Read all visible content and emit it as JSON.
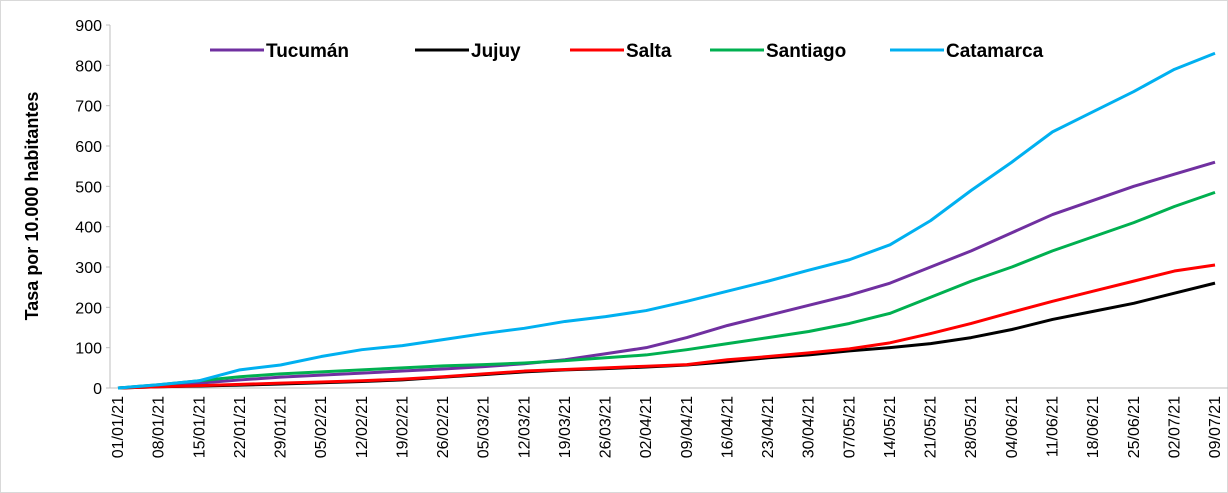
{
  "chart_data": {
    "type": "line",
    "y_label": "Tasa por 10.000 habitantes",
    "categories": [
      "01/01/21",
      "08/01/21",
      "15/01/21",
      "22/01/21",
      "29/01/21",
      "05/02/21",
      "12/02/21",
      "19/02/21",
      "26/02/21",
      "05/03/21",
      "12/03/21",
      "19/03/21",
      "26/03/21",
      "02/04/21",
      "09/04/21",
      "16/04/21",
      "23/04/21",
      "30/04/21",
      "07/05/21",
      "14/05/21",
      "21/05/21",
      "28/05/21",
      "04/06/21",
      "11/06/21",
      "18/06/21",
      "25/06/21",
      "02/07/21",
      "09/07/21"
    ],
    "series": [
      {
        "name": "Tucumán",
        "color": "#7030a0",
        "values": [
          0,
          5,
          12,
          20,
          27,
          32,
          37,
          42,
          47,
          53,
          60,
          70,
          85,
          100,
          125,
          155,
          180,
          205,
          230,
          260,
          300,
          340,
          385,
          430,
          465,
          500,
          530,
          560
        ]
      },
      {
        "name": "Jujuy",
        "color": "#000000",
        "values": [
          0,
          3,
          5,
          7,
          10,
          13,
          16,
          20,
          27,
          33,
          40,
          45,
          48,
          52,
          57,
          65,
          75,
          82,
          92,
          100,
          110,
          125,
          145,
          170,
          190,
          210,
          235,
          260
        ]
      },
      {
        "name": "Salta",
        "color": "#ff0000",
        "values": [
          0,
          3,
          6,
          9,
          12,
          15,
          18,
          22,
          28,
          35,
          42,
          46,
          50,
          54,
          58,
          70,
          78,
          87,
          97,
          112,
          135,
          160,
          188,
          215,
          240,
          265,
          290,
          305
        ]
      },
      {
        "name": "Santiago",
        "color": "#00b050",
        "values": [
          0,
          8,
          18,
          28,
          35,
          40,
          45,
          50,
          55,
          58,
          62,
          68,
          75,
          82,
          95,
          110,
          125,
          140,
          160,
          185,
          225,
          265,
          300,
          340,
          375,
          410,
          450,
          485
        ]
      },
      {
        "name": "Catamarca",
        "color": "#00b0f0",
        "values": [
          0,
          8,
          18,
          45,
          57,
          78,
          95,
          105,
          120,
          135,
          148,
          165,
          177,
          192,
          215,
          240,
          265,
          292,
          318,
          355,
          415,
          490,
          560,
          635,
          685,
          735,
          790,
          830
        ]
      }
    ],
    "ylim": [
      0,
      900
    ],
    "yticks": [
      0,
      100,
      200,
      300,
      400,
      500,
      600,
      700,
      800,
      900
    ],
    "grid": false,
    "legend": "top"
  }
}
